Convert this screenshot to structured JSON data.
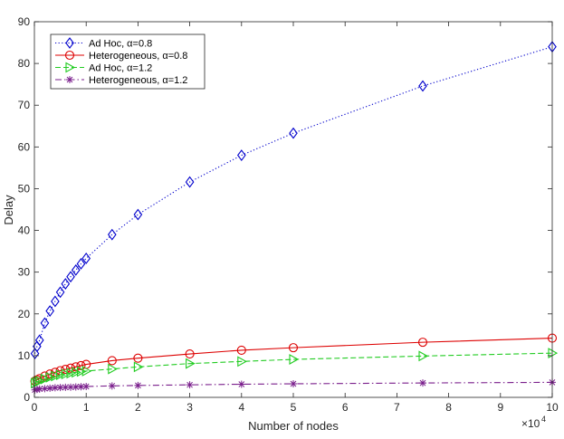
{
  "chart_data": {
    "type": "line",
    "xlabel": "Number of nodes",
    "ylabel": "Delay",
    "x_exponent_label": "×10",
    "x_exponent_power": "4",
    "xlim": [
      0,
      10
    ],
    "ylim": [
      0,
      90
    ],
    "x_ticks": [
      "0",
      "1",
      "2",
      "3",
      "4",
      "5",
      "6",
      "7",
      "8",
      "9",
      "10"
    ],
    "y_ticks": [
      "0",
      "10",
      "20",
      "30",
      "40",
      "50",
      "60",
      "70",
      "80",
      "90"
    ],
    "grid": false,
    "legend_position": "top-left",
    "x": [
      0.01,
      0.05,
      0.1,
      0.2,
      0.3,
      0.4,
      0.5,
      0.6,
      0.7,
      0.8,
      0.9,
      1.0,
      1.5,
      2.0,
      3.0,
      4.0,
      5.0,
      7.5,
      10.0
    ],
    "series": [
      {
        "name": "Ad Hoc, α=0.8",
        "color": "#0000cc",
        "marker": "diamond",
        "line": "dotted",
        "values": [
          10.5,
          12.2,
          13.7,
          17.8,
          20.7,
          23.0,
          25.2,
          27.2,
          28.9,
          30.5,
          32.0,
          33.3,
          39.0,
          43.8,
          51.6,
          58.0,
          63.3,
          74.6,
          84.0
        ]
      },
      {
        "name": "Heterogeneous, α=0.8",
        "color": "#dd0000",
        "marker": "circle",
        "line": "solid",
        "values": [
          3.9,
          4.2,
          4.5,
          5.1,
          5.6,
          6.0,
          6.4,
          6.7,
          7.0,
          7.3,
          7.6,
          7.9,
          8.8,
          9.4,
          10.4,
          11.3,
          11.9,
          13.2,
          14.2
        ]
      },
      {
        "name": "Ad Hoc, α=1.2",
        "color": "#22cc22",
        "marker": "triangle-right",
        "line": "dashed",
        "values": [
          3.4,
          3.7,
          3.9,
          4.4,
          4.8,
          5.1,
          5.4,
          5.6,
          5.8,
          6.0,
          6.2,
          6.3,
          6.8,
          7.3,
          8.1,
          8.6,
          9.1,
          9.9,
          10.6
        ]
      },
      {
        "name": "Heterogeneous, α=1.2",
        "color": "#7a1f8c",
        "marker": "asterisk",
        "line": "dashdot",
        "values": [
          1.8,
          1.9,
          2.0,
          2.1,
          2.2,
          2.3,
          2.35,
          2.4,
          2.45,
          2.5,
          2.55,
          2.6,
          2.75,
          2.85,
          3.0,
          3.15,
          3.25,
          3.45,
          3.6
        ]
      }
    ]
  }
}
